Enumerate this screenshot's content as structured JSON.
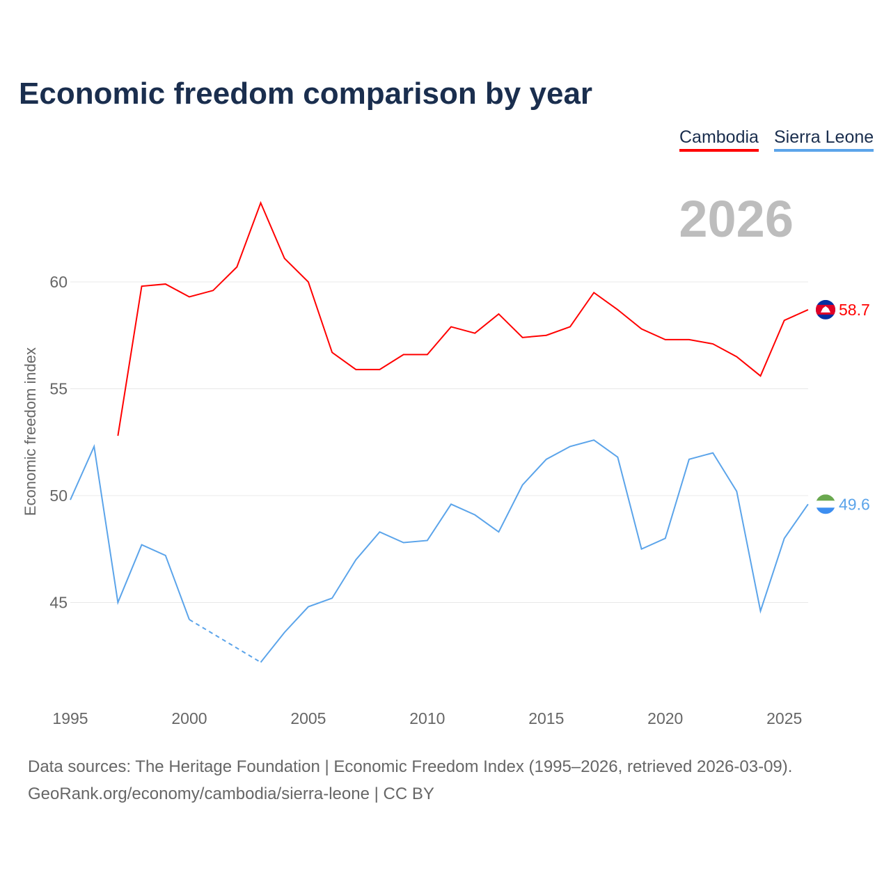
{
  "title": "Economic freedom comparison by year",
  "year_label": "2026",
  "footer": {
    "line1": "Data sources: The Heritage Foundation | Economic Freedom Index (1995–2026, retrieved 2026-03-09).",
    "line2": "GeoRank.org/economy/cambodia/sierra-leone | CC BY"
  },
  "chart_data": {
    "type": "line",
    "title": "Economic freedom comparison by year",
    "xlabel": "",
    "ylabel": "Economic freedom index",
    "xlim": [
      1995,
      2026
    ],
    "ylim": [
      41,
      65
    ],
    "xticks": [
      1995,
      2000,
      2005,
      2010,
      2015,
      2020,
      2025
    ],
    "yticks": [
      45,
      50,
      55,
      60
    ],
    "grid": true,
    "legend": "top-right",
    "series": [
      {
        "name": "Cambodia",
        "color": "#ff0000",
        "end_label": "58.7",
        "flag_icon": "cambodia-flag-icon",
        "x": [
          1997,
          1998,
          1999,
          2000,
          2001,
          2002,
          2003,
          2004,
          2005,
          2006,
          2007,
          2008,
          2009,
          2010,
          2011,
          2012,
          2013,
          2014,
          2015,
          2016,
          2017,
          2018,
          2019,
          2020,
          2021,
          2022,
          2023,
          2024,
          2025,
          2026
        ],
        "values": [
          52.8,
          59.8,
          59.9,
          59.3,
          59.6,
          60.7,
          63.7,
          61.1,
          60.0,
          56.7,
          55.9,
          55.9,
          56.6,
          56.6,
          57.9,
          57.6,
          58.5,
          57.4,
          57.5,
          57.9,
          59.5,
          58.7,
          57.8,
          57.3,
          57.3,
          57.1,
          56.5,
          55.6,
          58.2,
          58.7
        ]
      },
      {
        "name": "Sierra Leone",
        "color": "#5ba4ea",
        "end_label": "49.6",
        "flag_icon": "sierra-leone-flag-icon",
        "x": [
          1995,
          1996,
          1997,
          1998,
          1999,
          2000,
          2001,
          2002,
          2003,
          2004,
          2005,
          2006,
          2007,
          2008,
          2009,
          2010,
          2011,
          2012,
          2013,
          2014,
          2015,
          2016,
          2017,
          2018,
          2019,
          2020,
          2021,
          2022,
          2023,
          2024,
          2025,
          2026
        ],
        "values": [
          49.8,
          52.3,
          45.0,
          47.7,
          47.2,
          44.2,
          null,
          null,
          42.2,
          43.6,
          44.8,
          45.2,
          47.0,
          48.3,
          47.8,
          47.9,
          49.6,
          49.1,
          48.3,
          50.5,
          51.7,
          52.3,
          52.6,
          51.8,
          47.5,
          48.0,
          51.7,
          52.0,
          50.2,
          44.6,
          48.0,
          49.6
        ]
      }
    ]
  }
}
